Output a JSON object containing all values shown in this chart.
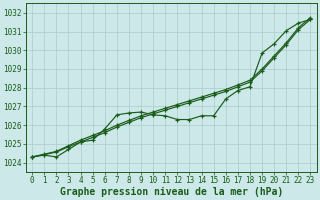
{
  "xlabel": "Graphe pression niveau de la mer (hPa)",
  "xlim": [
    -0.5,
    23.5
  ],
  "ylim": [
    1023.5,
    1032.5
  ],
  "yticks": [
    1024,
    1025,
    1026,
    1027,
    1028,
    1029,
    1030,
    1031,
    1032
  ],
  "xticks": [
    0,
    1,
    2,
    3,
    4,
    5,
    6,
    7,
    8,
    9,
    10,
    11,
    12,
    13,
    14,
    15,
    16,
    17,
    18,
    19,
    20,
    21,
    22,
    23
  ],
  "background_color": "#cce8e8",
  "grid_color": "#aacccc",
  "line_color": "#1a5c1a",
  "line_measured": [
    1024.3,
    1024.4,
    1024.3,
    1024.7,
    1025.1,
    1025.2,
    1025.8,
    1026.55,
    1026.65,
    1026.7,
    1026.55,
    1026.5,
    1026.3,
    1026.3,
    1026.5,
    1026.5,
    1027.4,
    1027.85,
    1028.05,
    1029.85,
    1030.35,
    1031.05,
    1031.45,
    1031.65
  ],
  "line_trend1": [
    1024.3,
    1024.43,
    1024.56,
    1024.85,
    1025.1,
    1025.35,
    1025.6,
    1025.9,
    1026.15,
    1026.4,
    1026.6,
    1026.8,
    1027.0,
    1027.2,
    1027.4,
    1027.6,
    1027.8,
    1028.05,
    1028.3,
    1028.9,
    1029.6,
    1030.3,
    1031.1,
    1031.65
  ],
  "line_trend2": [
    1024.3,
    1024.45,
    1024.6,
    1024.9,
    1025.2,
    1025.45,
    1025.7,
    1026.0,
    1026.25,
    1026.5,
    1026.7,
    1026.9,
    1027.1,
    1027.3,
    1027.5,
    1027.7,
    1027.9,
    1028.15,
    1028.4,
    1029.0,
    1029.7,
    1030.4,
    1031.2,
    1031.75
  ],
  "label_fontsize": 7,
  "tick_fontsize": 5.5
}
